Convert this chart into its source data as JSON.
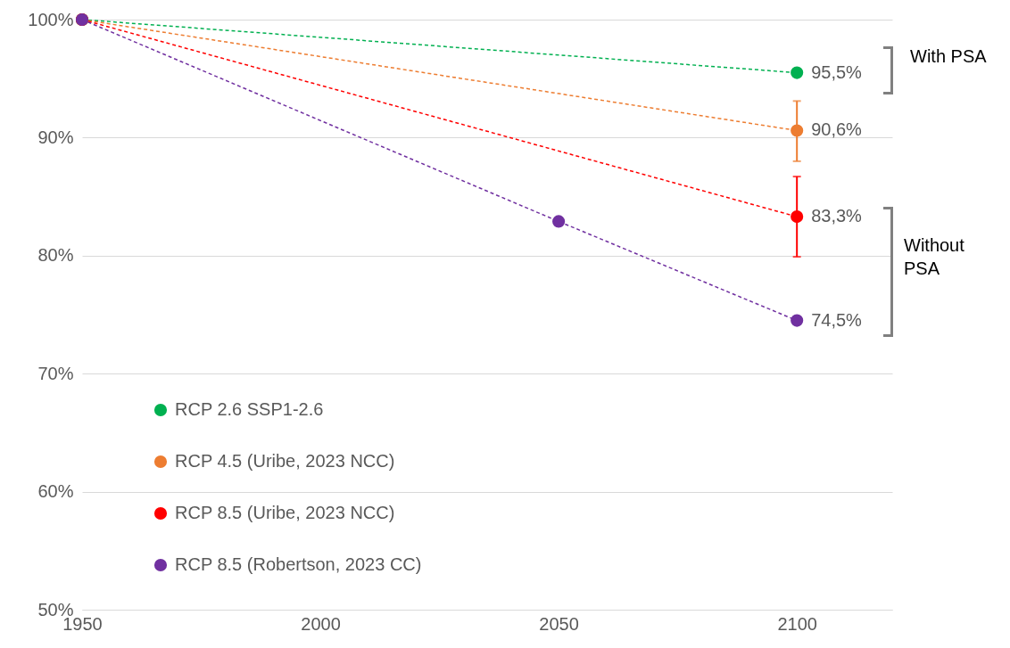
{
  "chart_data": {
    "type": "line",
    "x": [
      1950,
      2100
    ],
    "xlim": [
      1950,
      2120
    ],
    "xticks": [
      1950,
      2000,
      2050,
      2100
    ],
    "ylim": [
      50,
      100
    ],
    "yticks": [
      {
        "value": 50,
        "label": "50%"
      },
      {
        "value": 60,
        "label": "60%"
      },
      {
        "value": 70,
        "label": "70%"
      },
      {
        "value": 80,
        "label": "80%"
      },
      {
        "value": 90,
        "label": "90%"
      },
      {
        "value": 100,
        "label": "100%"
      }
    ],
    "grid": "y",
    "legend": "bottom left",
    "marker": "circle",
    "line_style": "dashed",
    "series": [
      {
        "name": "RCP 2.6 SSP1-2.6",
        "color": "#00b050",
        "values": [
          100,
          95.5
        ],
        "value_labels": [
          null,
          "95,5%"
        ]
      },
      {
        "name": "RCP 4.5 (Uribe, 2023 NCC)",
        "color": "#ed7d31",
        "values": [
          100,
          90.6
        ],
        "value_labels": [
          null,
          "90,6%"
        ],
        "errors": [
          null,
          [
            88.0,
            93.1
          ]
        ]
      },
      {
        "name": "RCP 8.5 (Uribe, 2023 NCC)",
        "color": "#ff0000",
        "values": [
          100,
          83.3
        ],
        "value_labels": [
          null,
          "83,3%"
        ],
        "errors": [
          null,
          [
            79.9,
            86.7
          ]
        ]
      },
      {
        "name": "RCP 8.5 (Robertson, 2023 CC)",
        "color": "#7030a0",
        "x": [
          1950,
          2050,
          2100
        ],
        "values": [
          100,
          82.9,
          74.5
        ],
        "value_labels": [
          null,
          null,
          "74,5%"
        ]
      }
    ],
    "annotations": [
      "With PSA",
      "Without PSA"
    ]
  }
}
